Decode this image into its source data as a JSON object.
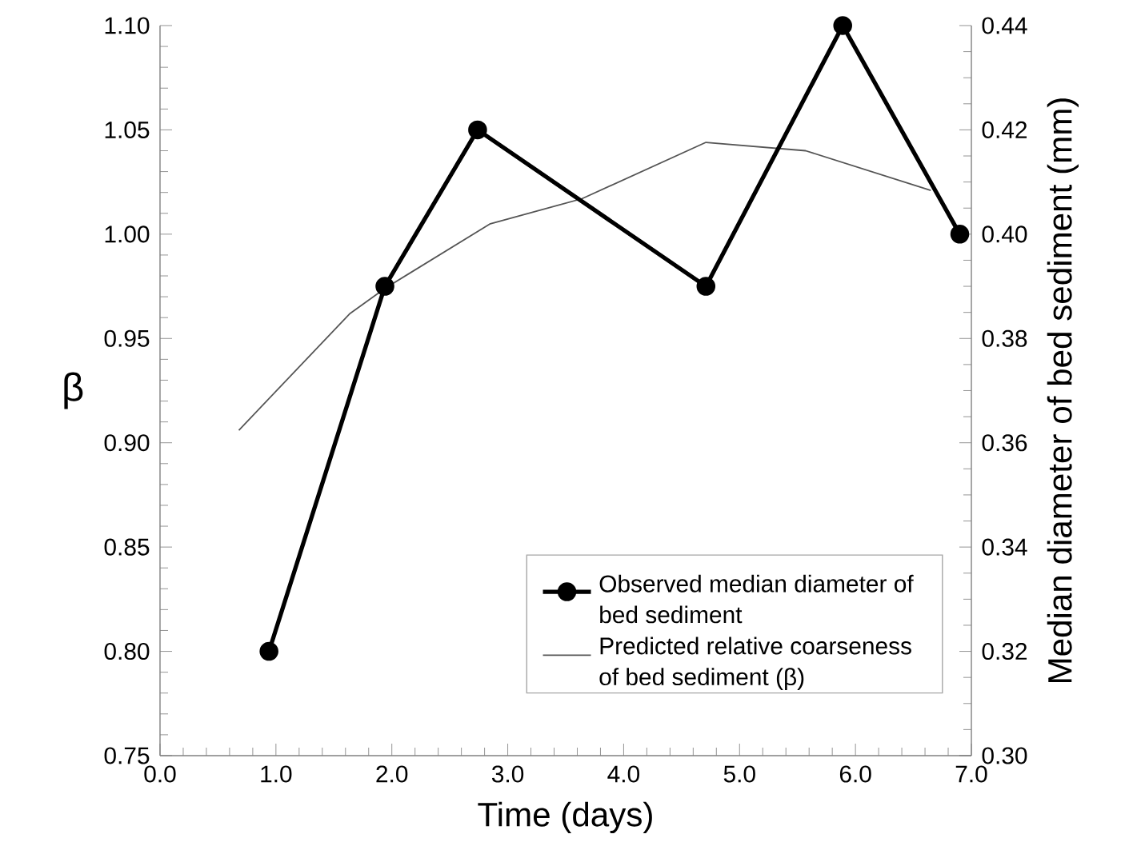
{
  "chart_data": {
    "type": "line",
    "xlabel": "Time (days)",
    "ylabel": "β",
    "y2label": "Median diameter of bed sediment (mm)",
    "series": [
      {
        "name": "Observed median diameter of bed sediment",
        "color": "#000000",
        "axis": "y2",
        "marker": "circle",
        "x": [
          0.94,
          1.94,
          2.74,
          4.71,
          5.89,
          6.9
        ],
        "values": [
          0.32,
          0.39,
          0.42,
          0.39,
          0.44,
          0.4
        ]
      },
      {
        "name": "Predicted relative coarseness of bed sediment (β)",
        "color": "#555555",
        "marker": "none",
        "x": [
          0.68,
          1.64,
          1.94,
          2.85,
          3.64,
          4.71,
          5.57,
          6.65
        ],
        "values": [
          0.906,
          0.962,
          0.974,
          1.005,
          1.017,
          1.044,
          1.04,
          1.021
        ]
      }
    ],
    "xlim": [
      0,
      7
    ],
    "ylim": [
      0.75,
      1.1
    ],
    "y2lim": [
      0.3,
      0.44
    ],
    "xticks": [
      {
        "value": 0,
        "label": "0.0"
      },
      {
        "value": 1,
        "label": "1.0"
      },
      {
        "value": 2,
        "label": "2.0"
      },
      {
        "value": 3,
        "label": "3.0"
      },
      {
        "value": 4,
        "label": "4.0"
      },
      {
        "value": 5,
        "label": "5.0"
      },
      {
        "value": 6,
        "label": "6.0"
      },
      {
        "value": 7,
        "label": "7.0"
      }
    ],
    "yticks": [
      {
        "value": 0.75,
        "label": "0.75"
      },
      {
        "value": 0.8,
        "label": "0.80"
      },
      {
        "value": 0.85,
        "label": "0.85"
      },
      {
        "value": 0.9,
        "label": "0.90"
      },
      {
        "value": 0.95,
        "label": "0.95"
      },
      {
        "value": 1.0,
        "label": "1.00"
      },
      {
        "value": 1.05,
        "label": "1.05"
      },
      {
        "value": 1.1,
        "label": "1.10"
      }
    ],
    "y2ticks": [
      {
        "value": 0.3,
        "label": "0.30"
      },
      {
        "value": 0.32,
        "label": "0.32"
      },
      {
        "value": 0.34,
        "label": "0.34"
      },
      {
        "value": 0.36,
        "label": "0.36"
      },
      {
        "value": 0.38,
        "label": "0.38"
      },
      {
        "value": 0.4,
        "label": "0.40"
      },
      {
        "value": 0.42,
        "label": "0.42"
      },
      {
        "value": 0.44,
        "label": "0.44"
      }
    ],
    "grid": false,
    "legend": "bottom right"
  }
}
